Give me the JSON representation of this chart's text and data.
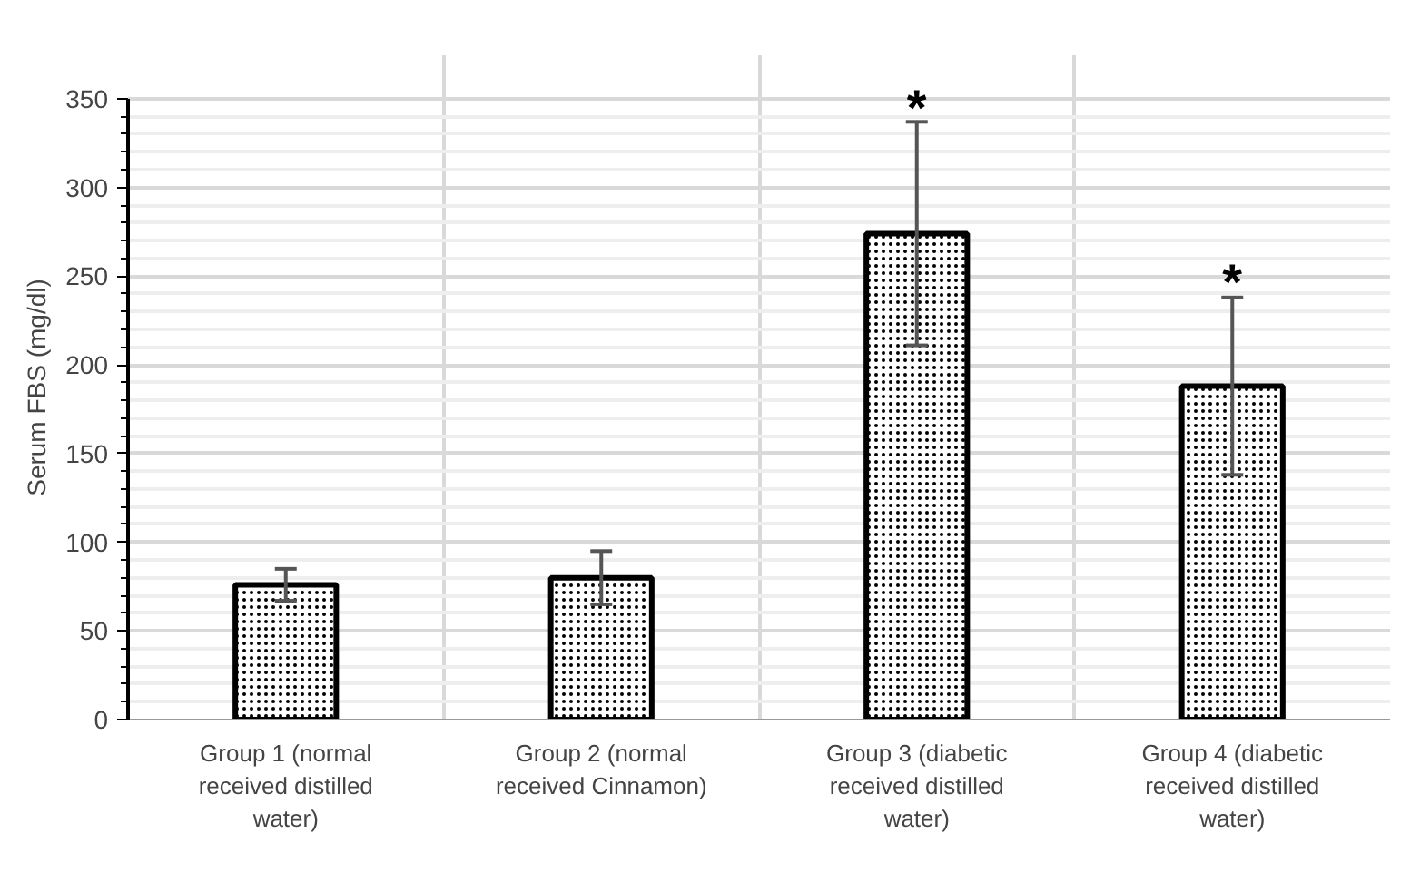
{
  "chart_data": {
    "type": "bar",
    "ylabel": "Serum FBS (mg/dl)",
    "categories": [
      "Group 1 (normal received distilled water)",
      "Group 2 (normal received Cinnamon)",
      "Group 3 (diabetic received distilled water)",
      "Group 4 (diabetic received distilled water)"
    ],
    "values": [
      76,
      80,
      274,
      188
    ],
    "errors": [
      9,
      15,
      63,
      50
    ],
    "color": "#ffffff",
    "ylim": [
      0,
      350
    ],
    "yticks": [
      0,
      50,
      100,
      150,
      200,
      250,
      300,
      350
    ],
    "grid": true,
    "annotations": [
      {
        "text": "*",
        "x": "Group 3 (diabetic received distilled water)",
        "y": 335
      },
      {
        "text": "*",
        "x": "Group 4 (diabetic received distilled water)",
        "y": 237
      }
    ]
  }
}
